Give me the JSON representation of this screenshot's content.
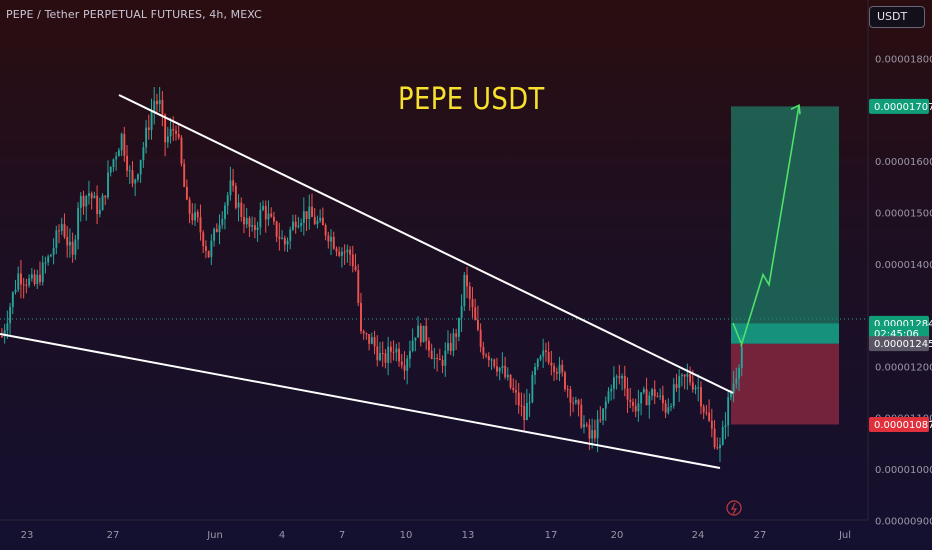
{
  "header": {
    "symbol_line": "PEPE / Tether PERPETUAL FUTURES, 4h, MEXC"
  },
  "currency_button": {
    "label": "USDT"
  },
  "chart_title": "PEPE USDT",
  "colors": {
    "up": "#26a69a",
    "down": "#ef5350",
    "target_zone": "#1e7a63",
    "stop_zone": "#8b2840",
    "projection": "#4ee06a",
    "trendline": "#ffffff",
    "title": "#f7e02e"
  },
  "chart_data": {
    "type": "candlestick",
    "interval": "4h",
    "exchange": "MEXC",
    "title": "PEPE USDT",
    "ylim": [
      8.9e-06,
      1.87e-05
    ],
    "y_ticks": [
      "0.000018000",
      "0.000016000",
      "0.000015000",
      "0.000014000",
      "0.000012000",
      "0.000011000",
      "0.000010000",
      "0.000009000"
    ],
    "x_ticks": [
      "23",
      "27",
      "Jun",
      "4",
      "7",
      "10",
      "13",
      "17",
      "20",
      "24",
      "27",
      "Jul"
    ],
    "price_labels": [
      {
        "text": "0.000017078",
        "value": 1.7078e-05,
        "color": "#0f9e78"
      },
      {
        "text": "0.000012849",
        "value": 1.2849e-05,
        "color": "#0f9e78"
      },
      {
        "text": "02:45:06",
        "value": 1.265e-05,
        "color": "#0f9e78"
      },
      {
        "text": "0.000012453",
        "value": 1.2453e-05,
        "color": "#5a5666"
      },
      {
        "text": "0.000010878",
        "value": 1.0878e-05,
        "color": "#e0303c"
      }
    ],
    "current_price": 1.2849e-05,
    "position": {
      "entry": 1.2453e-05,
      "target": 1.7078e-05,
      "stop": 1.0878e-05
    },
    "anchors": [
      [
        0,
        12.6
      ],
      [
        6,
        13.8
      ],
      [
        12,
        13.6
      ],
      [
        18,
        14.2
      ],
      [
        22,
        14.8
      ],
      [
        26,
        14.1
      ],
      [
        28,
        15.2
      ],
      [
        32,
        15.4
      ],
      [
        36,
        15.0
      ],
      [
        40,
        15.9
      ],
      [
        44,
        16.5
      ],
      [
        48,
        15.5
      ],
      [
        52,
        16.3
      ],
      [
        56,
        17.2
      ],
      [
        58,
        17.1
      ],
      [
        60,
        16.4
      ],
      [
        64,
        16.7
      ],
      [
        68,
        15.1
      ],
      [
        72,
        14.8
      ],
      [
        76,
        14.2
      ],
      [
        80,
        14.9
      ],
      [
        84,
        15.5
      ],
      [
        88,
        15.0
      ],
      [
        92,
        14.6
      ],
      [
        96,
        15.1
      ],
      [
        100,
        14.7
      ],
      [
        104,
        14.4
      ],
      [
        108,
        14.9
      ],
      [
        112,
        15.0
      ],
      [
        116,
        14.8
      ],
      [
        120,
        14.6
      ],
      [
        124,
        14.3
      ],
      [
        128,
        14.2
      ],
      [
        130,
        13.9
      ],
      [
        132,
        12.6
      ],
      [
        136,
        12.5
      ],
      [
        140,
        12.1
      ],
      [
        144,
        12.4
      ],
      [
        148,
        12.1
      ],
      [
        152,
        12.7
      ],
      [
        156,
        12.6
      ],
      [
        160,
        12.0
      ],
      [
        164,
        12.3
      ],
      [
        168,
        12.8
      ],
      [
        170,
        13.7
      ],
      [
        172,
        13.3
      ],
      [
        176,
        12.4
      ],
      [
        180,
        12.2
      ],
      [
        184,
        11.9
      ],
      [
        188,
        11.5
      ],
      [
        190,
        11.3
      ],
      [
        192,
        11.0
      ],
      [
        196,
        11.9
      ],
      [
        200,
        12.3
      ],
      [
        204,
        12.0
      ],
      [
        208,
        11.6
      ],
      [
        212,
        11.1
      ],
      [
        216,
        10.6
      ],
      [
        220,
        10.9
      ],
      [
        224,
        11.7
      ],
      [
        228,
        11.8
      ],
      [
        232,
        11.2
      ],
      [
        236,
        11.4
      ],
      [
        240,
        11.5
      ],
      [
        244,
        11.2
      ],
      [
        248,
        11.6
      ],
      [
        252,
        11.8
      ],
      [
        256,
        11.6
      ],
      [
        258,
        11.2
      ],
      [
        262,
        10.6
      ],
      [
        264,
        10.4
      ],
      [
        267,
        11.3
      ],
      [
        270,
        11.9
      ],
      [
        272,
        12.4
      ]
    ],
    "patterns": [
      {
        "type": "upper_trendline",
        "from": {
          "x_label": "27",
          "value": 1.73e-05
        },
        "to": {
          "x_label": "24",
          "value": 1.15e-05
        }
      },
      {
        "type": "lower_trendline",
        "from": {
          "x_label": "before 23",
          "value": 1.26e-05
        },
        "to": {
          "x_label": "24",
          "value": 1e-05
        }
      }
    ],
    "projection": {
      "start": 1.24e-05,
      "end": 1.71e-05,
      "path": [
        12.4,
        13.8,
        13.6,
        17.1
      ]
    },
    "grid": false,
    "legend": "none"
  }
}
